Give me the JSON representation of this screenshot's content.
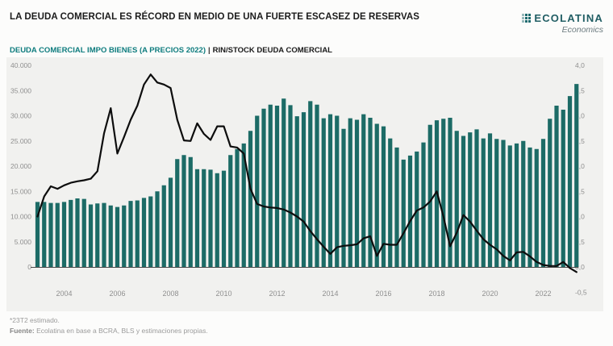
{
  "header": {
    "title": "LA DEUDA COMERCIAL ES RÉCORD EN MEDIO DE UNA FUERTE ESCASEZ DE RESERVAS",
    "logo": {
      "brand": "ECOLATINA",
      "tagline": "Economics"
    }
  },
  "subtitle": {
    "series1": "DEUDA COMERCIAL IMPO BIENES (A PRECIOS 2022)",
    "separator": "|",
    "series2": "RIN/STOCK DEUDA COMERCIAL"
  },
  "colors": {
    "bar": "#1c6b66",
    "line": "#0d0d0d",
    "panel": "#f1f1ef",
    "axis_text": "#8f8f8f",
    "baseline": "#4a4a4a",
    "accent_teal": "#0e7c7e"
  },
  "footer": {
    "note": "*23T2 estimado.",
    "source_label": "Fuente:",
    "source_text": "Ecolatina en base a BCRA, BLS y estimaciones propias."
  },
  "chart_data": {
    "type": "bar",
    "note": "bar series on left axis, line series on right axis; quarterly data",
    "x": [
      "2003T1",
      "2003T2",
      "2003T3",
      "2003T4",
      "2004T1",
      "2004T2",
      "2004T3",
      "2004T4",
      "2005T1",
      "2005T2",
      "2005T3",
      "2005T4",
      "2006T1",
      "2006T2",
      "2006T3",
      "2006T4",
      "2007T1",
      "2007T2",
      "2007T3",
      "2007T4",
      "2008T1",
      "2008T2",
      "2008T3",
      "2008T4",
      "2009T1",
      "2009T2",
      "2009T3",
      "2009T4",
      "2010T1",
      "2010T2",
      "2010T3",
      "2010T4",
      "2011T1",
      "2011T2",
      "2011T3",
      "2011T4",
      "2012T1",
      "2012T2",
      "2012T3",
      "2012T4",
      "2013T1",
      "2013T2",
      "2013T3",
      "2013T4",
      "2014T1",
      "2014T2",
      "2014T3",
      "2014T4",
      "2015T1",
      "2015T2",
      "2015T3",
      "2015T4",
      "2016T1",
      "2016T2",
      "2016T3",
      "2016T4",
      "2017T1",
      "2017T2",
      "2017T3",
      "2017T4",
      "2018T1",
      "2018T2",
      "2018T3",
      "2018T4",
      "2019T1",
      "2019T2",
      "2019T3",
      "2019T4",
      "2020T1",
      "2020T2",
      "2020T3",
      "2020T4",
      "2021T1",
      "2021T2",
      "2021T3",
      "2021T4",
      "2022T1",
      "2022T2",
      "2022T3",
      "2022T4",
      "2023T1",
      "2023T2"
    ],
    "series": [
      {
        "name": "DEUDA COMERCIAL IMPO BIENES (A PRECIOS 2022)",
        "type": "bar",
        "axis": "left",
        "values": [
          12900,
          12900,
          12700,
          12700,
          12900,
          13300,
          13600,
          13500,
          12400,
          12600,
          12700,
          12200,
          11900,
          12200,
          13100,
          13200,
          13700,
          14000,
          15000,
          16200,
          17700,
          21400,
          22200,
          21800,
          19400,
          19400,
          19300,
          18600,
          19100,
          22200,
          23400,
          24500,
          27000,
          30000,
          31400,
          32200,
          32000,
          33400,
          32100,
          29900,
          30700,
          32900,
          32200,
          29500,
          30300,
          30000,
          27400,
          29500,
          29200,
          30300,
          29600,
          28400,
          27900,
          25500,
          23700,
          21300,
          22100,
          22900,
          24700,
          28200,
          29100,
          29400,
          29600,
          27000,
          26000,
          26700,
          27300,
          25500,
          26500,
          25400,
          25200,
          24100,
          24500,
          25000,
          23700,
          23400,
          25400,
          29400,
          32000,
          31200,
          33900,
          36300
        ]
      },
      {
        "name": "RIN/STOCK DEUDA COMERCIAL",
        "type": "line",
        "axis": "right",
        "values": [
          1.0,
          1.4,
          1.6,
          1.55,
          1.62,
          1.67,
          1.7,
          1.72,
          1.75,
          1.9,
          2.65,
          3.15,
          2.25,
          2.58,
          2.92,
          3.2,
          3.62,
          3.82,
          3.66,
          3.62,
          3.55,
          2.92,
          2.51,
          2.5,
          2.85,
          2.64,
          2.52,
          2.79,
          2.79,
          2.39,
          2.37,
          2.25,
          1.55,
          1.25,
          1.2,
          1.18,
          1.17,
          1.14,
          1.08,
          1.0,
          0.9,
          0.71,
          0.55,
          0.4,
          0.26,
          0.39,
          0.42,
          0.43,
          0.45,
          0.57,
          0.61,
          0.22,
          0.46,
          0.44,
          0.44,
          0.67,
          0.91,
          1.12,
          1.18,
          1.3,
          1.5,
          1.0,
          0.41,
          0.68,
          1.03,
          0.9,
          0.72,
          0.55,
          0.44,
          0.35,
          0.22,
          0.13,
          0.29,
          0.3,
          0.21,
          0.1,
          0.04,
          0.02,
          0.02,
          0.1,
          -0.02,
          -0.1
        ]
      }
    ],
    "left_axis": {
      "min": 0,
      "max": 40000,
      "values": [
        0,
        5000,
        10000,
        15000,
        20000,
        25000,
        30000,
        35000,
        40000
      ],
      "labels": [
        "0",
        "5.000",
        "10.000",
        "15.000",
        "20.000",
        "25.000",
        "30.000",
        "35.000",
        "40.000"
      ]
    },
    "right_axis": {
      "min": -0.5,
      "max": 4.0,
      "values": [
        -0.5,
        0.0,
        0.5,
        1.0,
        1.5,
        2.0,
        2.5,
        3.0,
        3.5,
        4.0
      ],
      "labels": [
        "-0,5",
        "0,0",
        "0,5",
        "1,0",
        "1,5",
        "2,0",
        "2,5",
        "3,0",
        "3,5",
        "4,0"
      ]
    },
    "x_ticks": {
      "indices": [
        4,
        12,
        20,
        28,
        36,
        44,
        52,
        60,
        68,
        76
      ],
      "labels": [
        "2004",
        "2006",
        "2008",
        "2010",
        "2012",
        "2014",
        "2016",
        "2018",
        "2020",
        "2022"
      ]
    },
    "grid": "off",
    "legend_position": "in subtitle line"
  }
}
